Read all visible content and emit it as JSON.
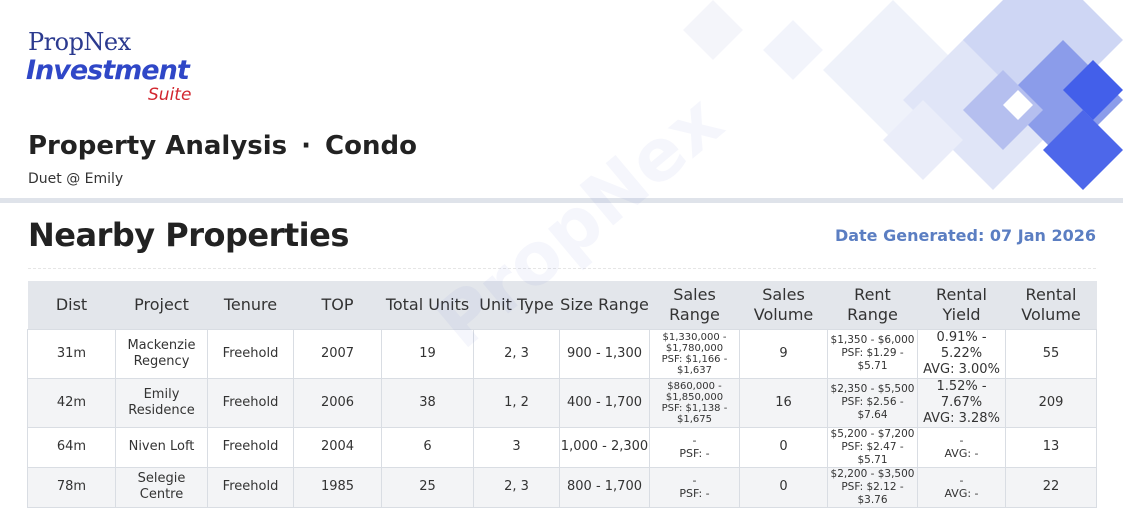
{
  "logo": {
    "brand": "PropNex",
    "product": "Investment",
    "suite": "Suite"
  },
  "header": {
    "title": "Property Analysis",
    "separator": "·",
    "category": "Condo",
    "subtitle": "Duet @ Emily"
  },
  "section": {
    "title": "Nearby Properties",
    "date_generated": "Date Generated: 07 Jan 2026"
  },
  "watermark": "PropNex",
  "colors": {
    "brand_blue": "#2f47c7",
    "brand_red": "#d2262f",
    "date_blue": "#5b7ec2",
    "header_bg": "#e3e6eb"
  },
  "table": {
    "columns": [
      "Dist",
      "Project",
      "Tenure",
      "TOP",
      "Total Units",
      "Unit Type",
      "Size Range",
      "Sales Range",
      "Sales Volume",
      "Rent Range",
      "Rental Yield",
      "Rental Volume"
    ],
    "rows": [
      {
        "dist": "31m",
        "project": "Mackenzie Regency",
        "tenure": "Freehold",
        "top": "2007",
        "total_units": "19",
        "unit_type": "2, 3",
        "size_range": "900 - 1,300",
        "sales_range_1": "$1,330,000 -",
        "sales_range_2": "$1,780,000",
        "sales_psf": "PSF: $1,166 - $1,637",
        "sales_volume": "9",
        "rent_range": "$1,350 - $6,000",
        "rent_psf": "PSF: $1.29 - $5.71",
        "yield_range": "0.91% - 5.22%",
        "yield_avg": "AVG: 3.00%",
        "rental_volume": "55"
      },
      {
        "dist": "42m",
        "project": "Emily Residence",
        "tenure": "Freehold",
        "top": "2006",
        "total_units": "38",
        "unit_type": "1, 2",
        "size_range": "400 - 1,700",
        "sales_range_1": "$860,000 -",
        "sales_range_2": "$1,850,000",
        "sales_psf": "PSF: $1,138 - $1,675",
        "sales_volume": "16",
        "rent_range": "$2,350 - $5,500",
        "rent_psf": "PSF: $2.56 - $7.64",
        "yield_range": "1.52% - 7.67%",
        "yield_avg": "AVG: 3.28%",
        "rental_volume": "209"
      },
      {
        "dist": "64m",
        "project": "Niven Loft",
        "tenure": "Freehold",
        "top": "2004",
        "total_units": "6",
        "unit_type": "3",
        "size_range": "1,000 - 2,300",
        "sales_range_1": "-",
        "sales_range_2": "",
        "sales_psf": "PSF: -",
        "sales_volume": "0",
        "rent_range": "$5,200 - $7,200",
        "rent_psf": "PSF: $2.47 - $5.71",
        "yield_range": "-",
        "yield_avg": "AVG: -",
        "rental_volume": "13"
      },
      {
        "dist": "78m",
        "project": "Selegie Centre",
        "tenure": "Freehold",
        "top": "1985",
        "total_units": "25",
        "unit_type": "2, 3",
        "size_range": "800 - 1,700",
        "sales_range_1": "-",
        "sales_range_2": "",
        "sales_psf": "PSF: -",
        "sales_volume": "0",
        "rent_range": "$2,200 - $3,500",
        "rent_psf": "PSF: $2.12 - $3.76",
        "yield_range": "-",
        "yield_avg": "AVG: -",
        "rental_volume": "22"
      }
    ]
  }
}
